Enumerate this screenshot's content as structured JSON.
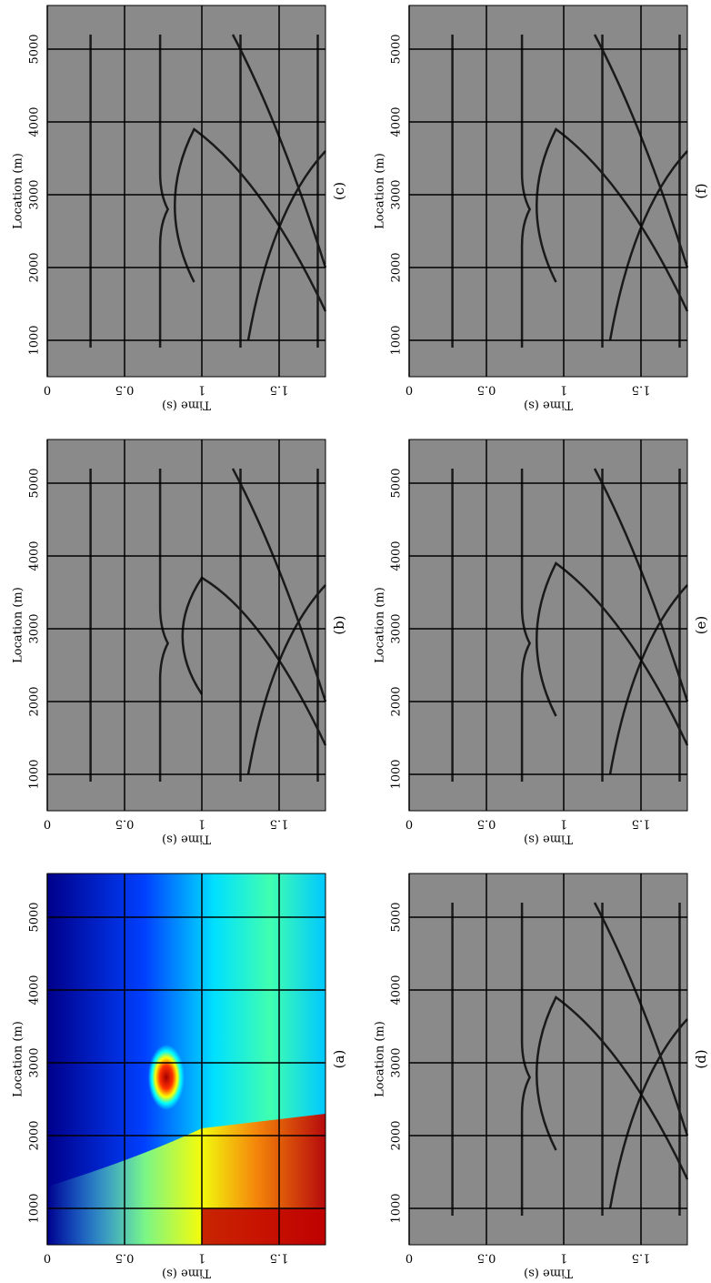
{
  "axes": {
    "location_label": "Location (m)",
    "time_label": "Time (s)",
    "location_ticks": [
      "1000",
      "2000",
      "3000",
      "4000",
      "5000"
    ],
    "time_ticks": [
      "0",
      "0.5",
      "1",
      "1.5"
    ]
  },
  "panels": [
    {
      "label": "(a)"
    },
    {
      "label": "(b)"
    },
    {
      "label": "(c)"
    },
    {
      "label": "(d)"
    },
    {
      "label": "(e)"
    },
    {
      "label": "(f)"
    }
  ]
}
